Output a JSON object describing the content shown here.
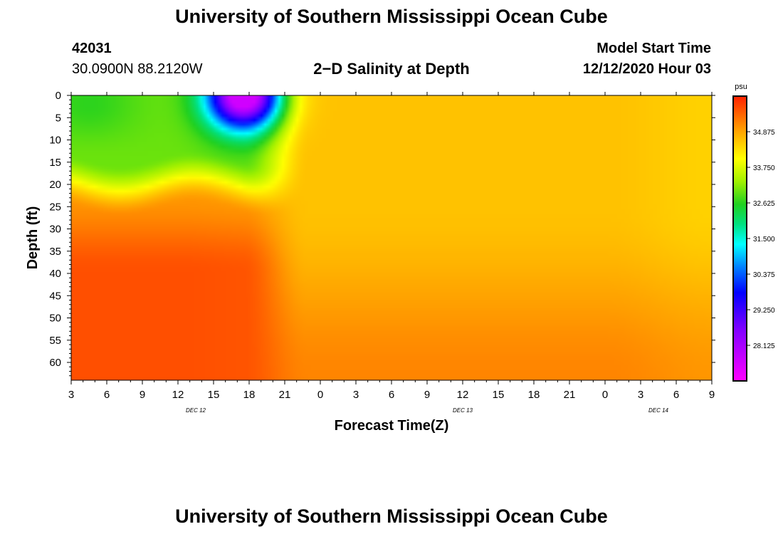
{
  "header": {
    "title": "University of Southern Mississippi Ocean Cube",
    "station_id": "42031",
    "station_coords": "30.0900N 88.2120W",
    "plot_title": "2−D Salinity at Depth",
    "model_start_label": "Model Start Time",
    "model_start_value": "12/12/2020 Hour 03"
  },
  "footer": {
    "title": "University of Southern Mississippi Ocean Cube"
  },
  "chart_data": {
    "type": "heatmap",
    "title": "2-D Salinity at Depth",
    "xlabel": "Forecast Time(Z)",
    "ylabel": "Depth (ft)",
    "x_start_hour": 3,
    "x_range_hours": [
      0,
      54
    ],
    "x_tick_labels": [
      "3",
      "6",
      "9",
      "12",
      "15",
      "18",
      "21",
      "0",
      "3",
      "6",
      "9",
      "12",
      "15",
      "18",
      "21",
      "0",
      "3",
      "6",
      "9"
    ],
    "date_labels": [
      {
        "label": "DEC 12",
        "hours_from_start": 10.5
      },
      {
        "label": "DEC 13",
        "hours_from_start": 33
      },
      {
        "label": "DEC 14",
        "hours_from_start": 49.5
      }
    ],
    "ylim": [
      0,
      64
    ],
    "y_ticks": [
      0,
      5,
      10,
      15,
      20,
      25,
      30,
      35,
      40,
      45,
      50,
      55,
      60
    ],
    "colorbar": {
      "unit": "psu",
      "range": [
        27.0,
        36.0
      ],
      "tick_values": [
        28.125,
        29.25,
        30.375,
        31.5,
        32.625,
        33.75,
        34.875
      ],
      "tick_labels": [
        "28.125",
        "29.250",
        "30.375",
        "31.500",
        "32.625",
        "33.750",
        "34.875"
      ]
    },
    "description_values": {
      "surface_layer_0_15ft_hours_0_24": 33.0,
      "deep_layer_30_64ft_hours_0_24": 35.6,
      "freshwater_plume_min_psu": 27.6,
      "freshwater_plume_hour": 14.5,
      "day3_mid_column": 34.6
    }
  }
}
